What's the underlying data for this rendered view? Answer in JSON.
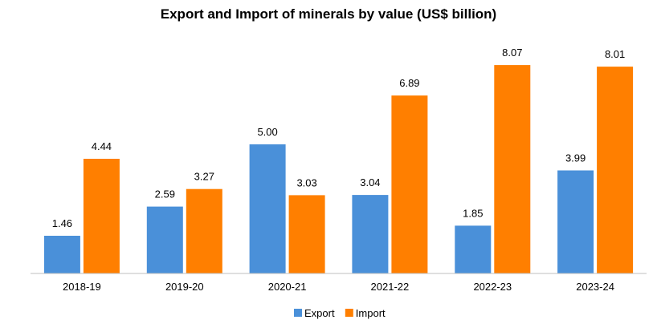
{
  "chart_data": {
    "type": "bar",
    "title": "Export and Import of minerals by value (US$ billion)",
    "xlabel": "",
    "ylabel": "",
    "categories": [
      "2018-19",
      "2019-20",
      "2020-21",
      "2021-22",
      "2022-23",
      "2023-24"
    ],
    "series": [
      {
        "name": "Export",
        "color": "#4A90D9",
        "values": [
          1.46,
          2.59,
          5.0,
          3.04,
          1.85,
          3.99
        ],
        "labels": [
          "1.46",
          "2.59",
          "5.00",
          "3.04",
          "1.85",
          "3.99"
        ]
      },
      {
        "name": "Import",
        "color": "#FF7F00",
        "values": [
          4.44,
          3.27,
          3.03,
          6.89,
          8.07,
          8.01
        ],
        "labels": [
          "4.44",
          "3.27",
          "3.03",
          "6.89",
          "8.07",
          "8.01"
        ]
      }
    ],
    "ylim": [
      0,
      8.5
    ],
    "grid": false,
    "legend": "bottom-center"
  }
}
